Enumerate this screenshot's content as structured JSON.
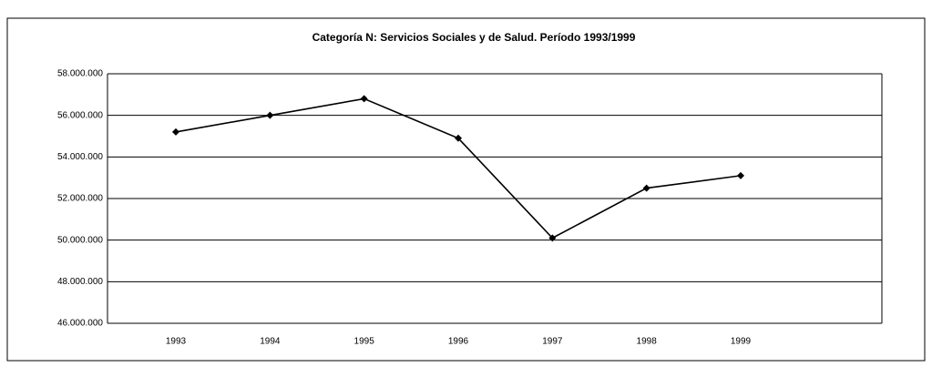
{
  "chart_data": {
    "type": "line",
    "title": "Categoría N: Servicios Sociales y de Salud. Período 1993/1999",
    "categories": [
      "1993",
      "1994",
      "1995",
      "1996",
      "1997",
      "1998",
      "1999"
    ],
    "series": [
      {
        "color": "#000000",
        "values": [
          55200000,
          56000000,
          56800000,
          54900000,
          50100000,
          52500000,
          53100000
        ]
      }
    ],
    "ylim": [
      46000000,
      58000000
    ],
    "yticks": [
      {
        "value": 46000000,
        "label": "46.000.000"
      },
      {
        "value": 48000000,
        "label": "48.000.000"
      },
      {
        "value": 50000000,
        "label": "50.000.000"
      },
      {
        "value": 52000000,
        "label": "52.000.000"
      },
      {
        "value": 54000000,
        "label": "54.000.000"
      },
      {
        "value": 56000000,
        "label": "56.000.000"
      },
      {
        "value": 58000000,
        "label": "58.000.000"
      }
    ],
    "grid": true
  }
}
